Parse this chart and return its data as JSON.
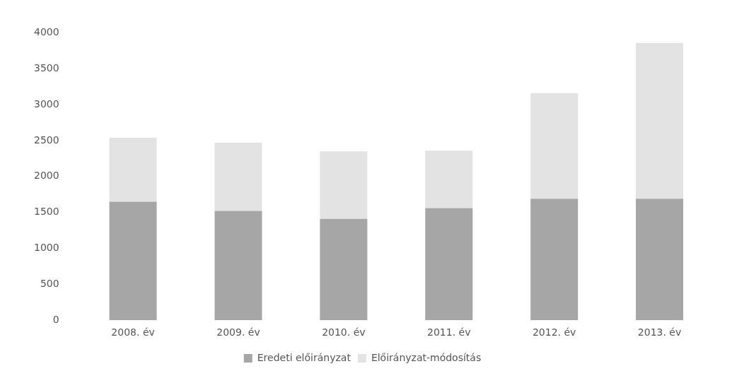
{
  "chart_data": {
    "type": "bar",
    "stacked": true,
    "categories": [
      "2008. év",
      "2009. év",
      "2010. év",
      "2011. év",
      "2012. év",
      "2013. év"
    ],
    "series": [
      {
        "name": "Eredeti előirányzat",
        "color": "#a6a6a6",
        "values": [
          1650,
          1520,
          1410,
          1560,
          1690,
          1690
        ]
      },
      {
        "name": "Előirányzat-módosítás",
        "color": "#e3e3e3",
        "values": [
          890,
          950,
          940,
          800,
          1470,
          2170
        ]
      }
    ],
    "ylim": [
      0,
      4000
    ],
    "yticks": [
      0,
      500,
      1000,
      1500,
      2000,
      2500,
      3000,
      3500,
      4000
    ],
    "grid": false,
    "legend": "bottom"
  }
}
